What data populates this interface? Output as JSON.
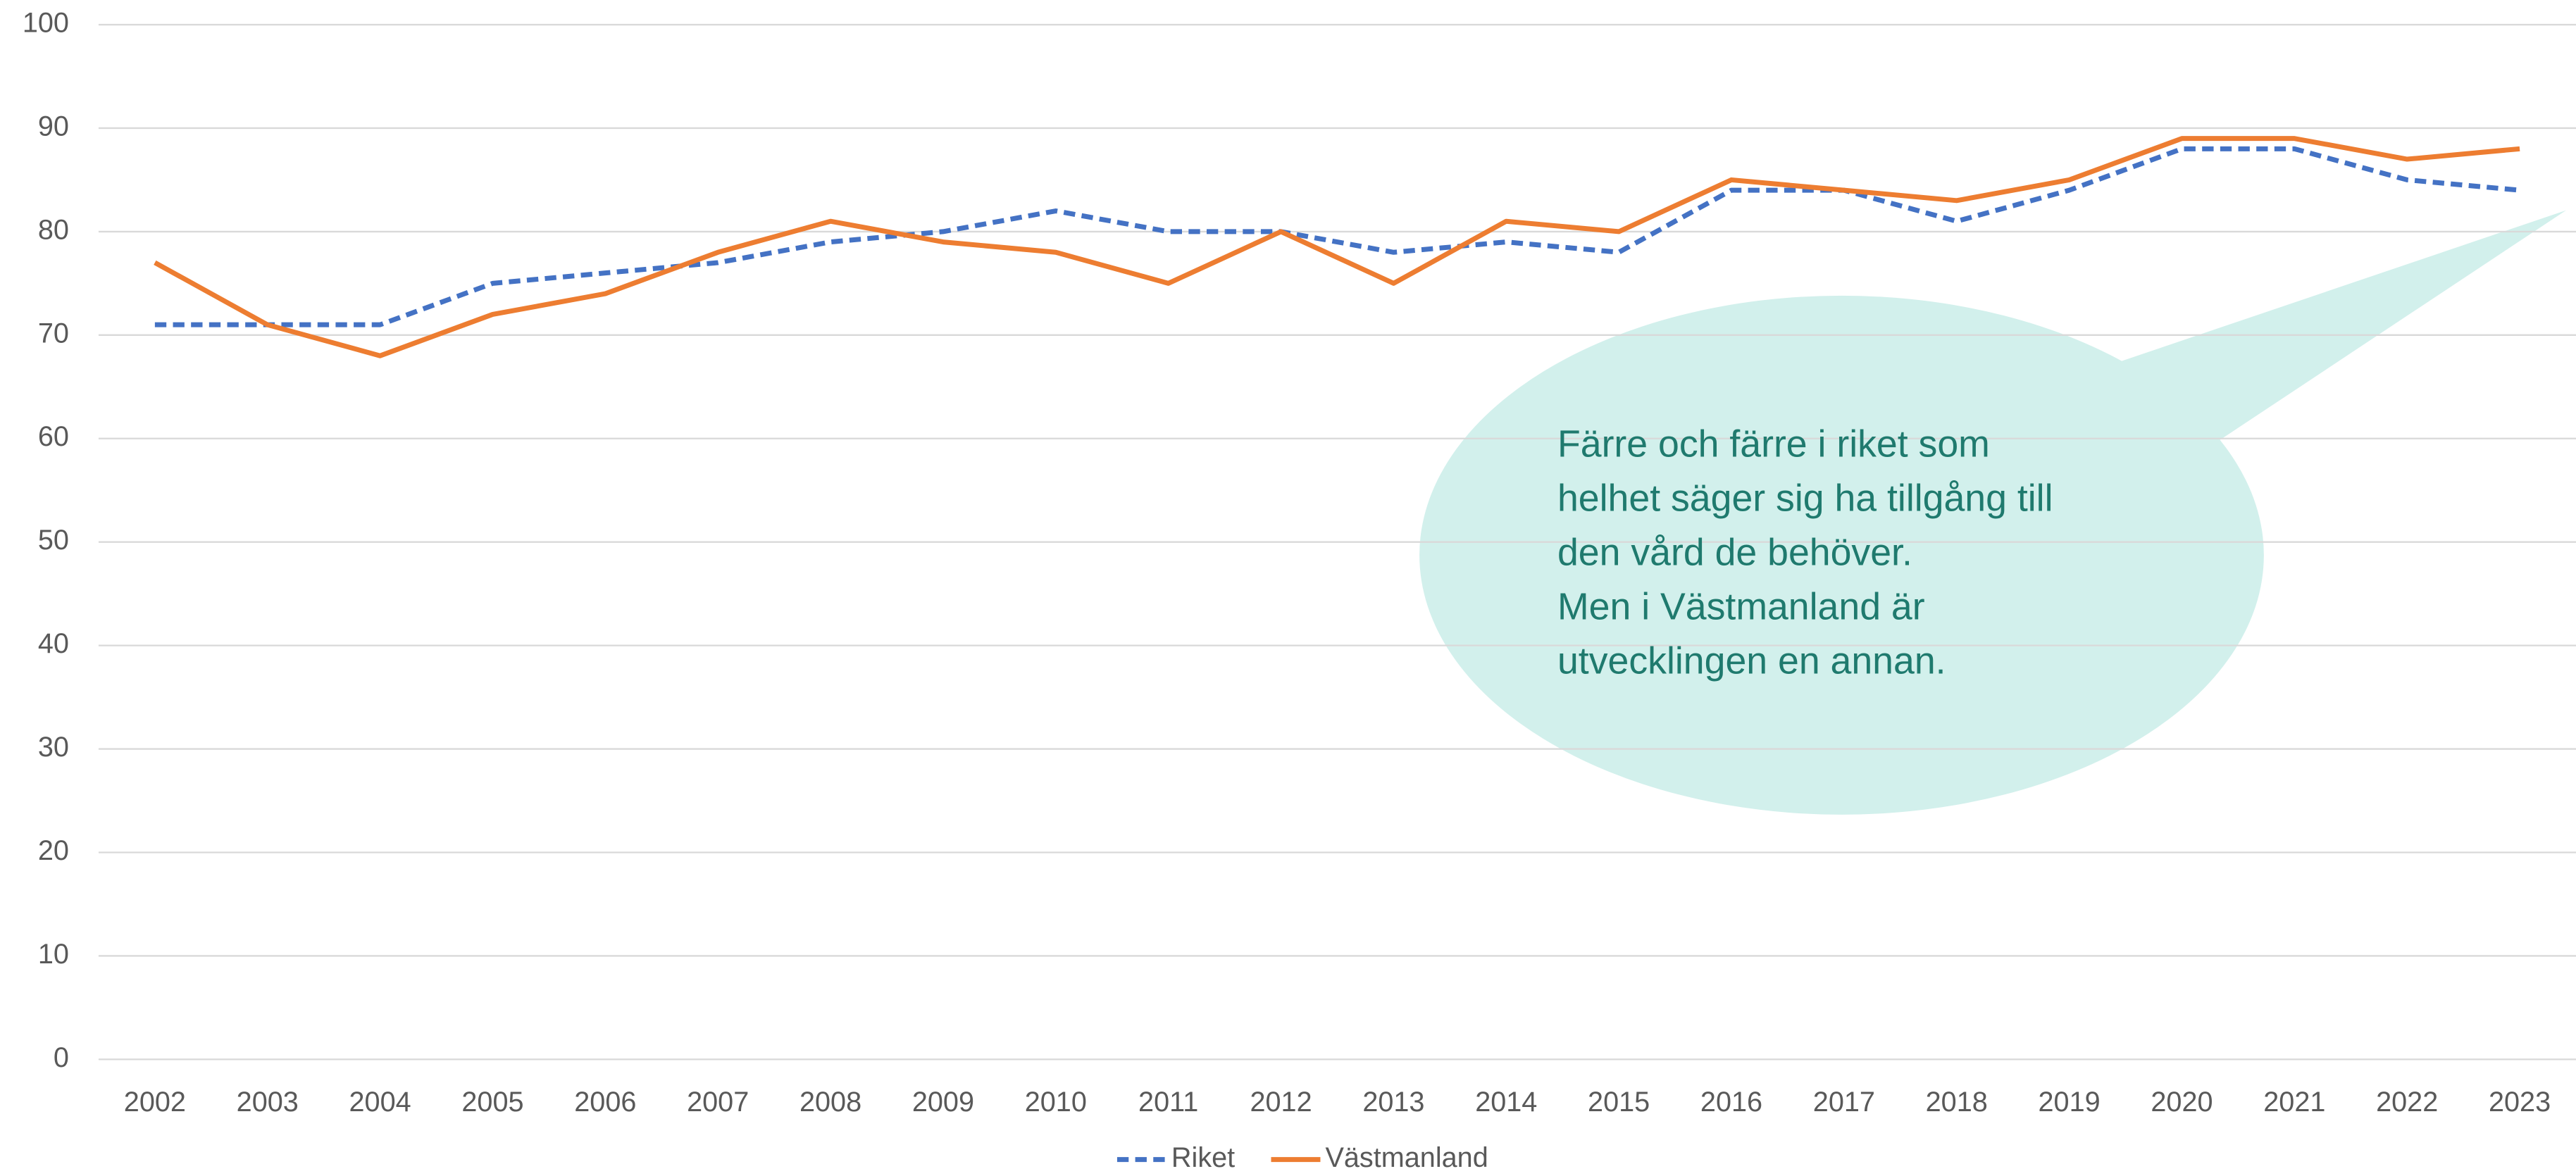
{
  "chart_data": {
    "type": "line",
    "categories": [
      "2002",
      "2003",
      "2004",
      "2005",
      "2006",
      "2007",
      "2008",
      "2009",
      "2010",
      "2011",
      "2012",
      "2013",
      "2014",
      "2015",
      "2016",
      "2017",
      "2018",
      "2019",
      "2020",
      "2021",
      "2022",
      "2023"
    ],
    "series": [
      {
        "name": "Riket",
        "color": "#4472c4",
        "dash": true,
        "values": [
          71,
          71,
          71,
          75,
          76,
          77,
          79,
          80,
          82,
          80,
          80,
          78,
          79,
          78,
          84,
          84,
          81,
          84,
          88,
          88,
          85,
          84
        ]
      },
      {
        "name": "Västmanland",
        "color": "#ed7d31",
        "dash": false,
        "values": [
          77,
          71,
          68,
          72,
          74,
          78,
          81,
          79,
          78,
          75,
          80,
          75,
          81,
          80,
          85,
          84,
          83,
          85,
          89,
          89,
          87,
          88
        ]
      }
    ],
    "ylim": [
      0,
      100
    ],
    "yticks": [
      0,
      10,
      20,
      30,
      40,
      50,
      60,
      70,
      80,
      90,
      100
    ],
    "grid": true,
    "legend": "bottom",
    "annotation": [
      "Färre och färre i riket som",
      "helhet säger sig ha tillgång till",
      "den vård de behöver.",
      "Men i Västmanland är",
      "utvecklingen en annan."
    ]
  }
}
